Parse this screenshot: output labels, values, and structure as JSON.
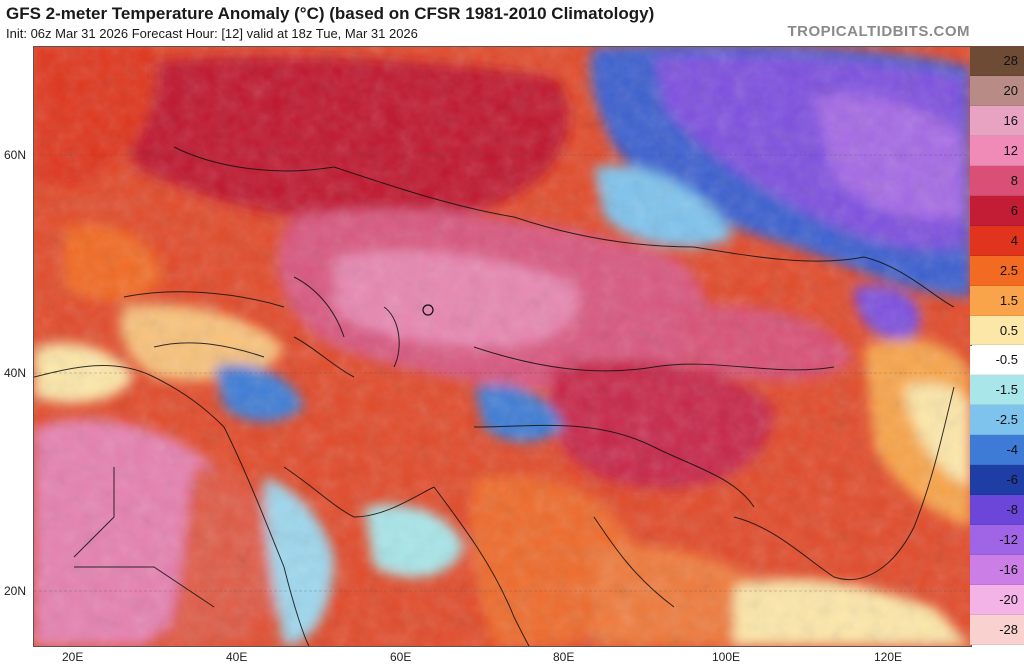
{
  "header": {
    "title": "GFS 2-meter Temperature Anomaly (°C) (based on CFSR 1981-2010 Climatology)",
    "subtitle": "Init: 06z Mar 31 2026   Forecast Hour: [12]   valid at 18z Tue, Mar 31 2026",
    "brand": "TROPICALTIDBITS.COM"
  },
  "axes": {
    "lat_labels": [
      "60N",
      "40N",
      "20N"
    ],
    "lon_labels": [
      "20E",
      "40E",
      "60E",
      "80E",
      "100E",
      "120E"
    ]
  },
  "colorbar": {
    "levels": [
      {
        "label": "28",
        "color": "#6e4b35"
      },
      {
        "label": "20",
        "color": "#b98b86"
      },
      {
        "label": "16",
        "color": "#e8a3c3"
      },
      {
        "label": "12",
        "color": "#f08bb8"
      },
      {
        "label": "8",
        "color": "#d94f75"
      },
      {
        "label": "6",
        "color": "#c21d35"
      },
      {
        "label": "4",
        "color": "#e0341c"
      },
      {
        "label": "2.5",
        "color": "#f36b22"
      },
      {
        "label": "1.5",
        "color": "#f9a44a"
      },
      {
        "label": "0.5",
        "color": "#fde7a8"
      },
      {
        "label": "-0.5",
        "color": "#ffffff"
      },
      {
        "label": "-1.5",
        "color": "#a8e6ea"
      },
      {
        "label": "-2.5",
        "color": "#7ec3ee"
      },
      {
        "label": "-4",
        "color": "#3d7bd6"
      },
      {
        "label": "-6",
        "color": "#1e3ea6"
      },
      {
        "label": "-8",
        "color": "#6b46d9"
      },
      {
        "label": "-12",
        "color": "#a065e6"
      },
      {
        "label": "-16",
        "color": "#cb7fe6"
      },
      {
        "label": "-20",
        "color": "#f3b3e6"
      },
      {
        "label": "-28",
        "color": "#f9d2cf"
      }
    ]
  }
}
